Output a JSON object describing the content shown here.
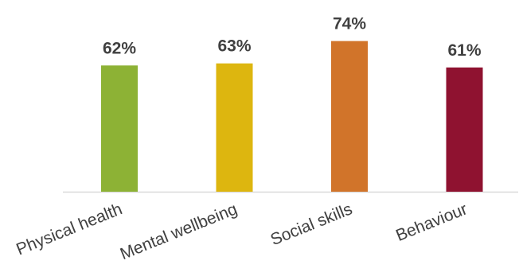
{
  "chart_data": {
    "type": "bar",
    "categories": [
      "Physical health",
      "Mental wellbeing",
      "Social skills",
      "Behaviour"
    ],
    "values": [
      62,
      63,
      74,
      61
    ],
    "value_labels": [
      "62%",
      "63%",
      "74%",
      "61%"
    ],
    "colors": [
      "#8db235",
      "#ddb60f",
      "#d1742a",
      "#8f1230"
    ],
    "ylim": [
      0,
      100
    ],
    "grid": false,
    "legend": "none",
    "title": "",
    "xlabel": "",
    "ylabel": ""
  }
}
